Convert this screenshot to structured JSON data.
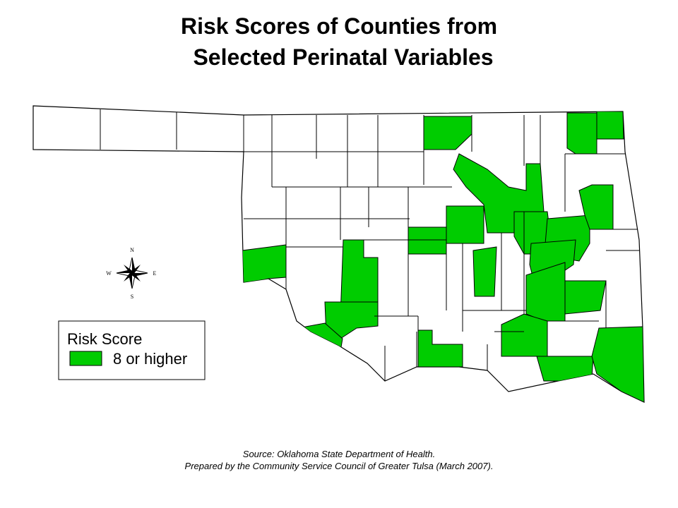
{
  "title": {
    "line1": "Risk Scores of Counties from",
    "line2": "Selected Perinatal Variables"
  },
  "compass": {
    "north": "N",
    "south": "S",
    "west": "W",
    "east": "E"
  },
  "legend": {
    "title": "Risk Score",
    "item": "8 or higher",
    "color": "#00cc00"
  },
  "source": {
    "line1": "Source:  Oklahoma State Department of Health.",
    "line2": "Prepared by the Community Service Council of Greater Tulsa (March 2007)."
  }
}
